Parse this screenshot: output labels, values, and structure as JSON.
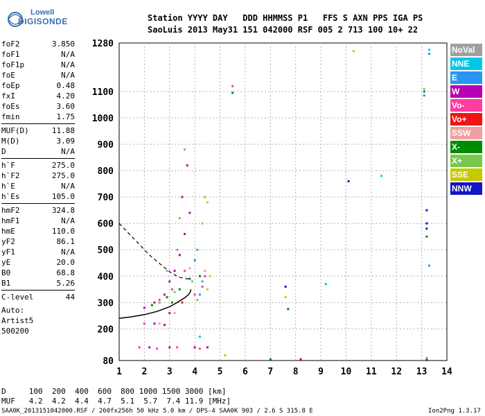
{
  "logo": {
    "line1": "Lowell",
    "line2": "DIGISONDE"
  },
  "header": {
    "row1": "Station YYYY DAY   DDD HHMMSS P1   FFS S AXN PPS IGA PS",
    "row2": "SaoLuis 2013 May31 151 042000 RSF 005 2 713 100 10+ 22"
  },
  "params": [
    {
      "group": [
        {
          "key": "foF2",
          "value": "3.850"
        },
        {
          "key": "foF1",
          "value": "N/A"
        },
        {
          "key": "foF1p",
          "value": "N/A"
        },
        {
          "key": "foE",
          "value": "N/A"
        },
        {
          "key": "foEp",
          "value": "0.48"
        },
        {
          "key": "fxI",
          "value": "4.20"
        },
        {
          "key": "foEs",
          "value": "3.60"
        },
        {
          "key": "fmin",
          "value": "1.75"
        }
      ]
    },
    {
      "group": [
        {
          "key": "MUF(D)",
          "value": "11.88"
        },
        {
          "key": "M(D)",
          "value": "3.09"
        },
        {
          "key": "D",
          "value": "N/A"
        }
      ]
    },
    {
      "group": [
        {
          "key": "h`F",
          "value": "275.0"
        },
        {
          "key": "h`F2",
          "value": "275.0"
        },
        {
          "key": "h`E",
          "value": "N/A"
        },
        {
          "key": "h`Es",
          "value": "105.0"
        }
      ]
    },
    {
      "group": [
        {
          "key": "hmF2",
          "value": "324.8"
        },
        {
          "key": "hmF1",
          "value": "N/A"
        },
        {
          "key": "hmE",
          "value": "110.0"
        },
        {
          "key": "yF2",
          "value": "86.1"
        },
        {
          "key": "yF1",
          "value": "N/A"
        },
        {
          "key": "yE",
          "value": "20.0"
        },
        {
          "key": "B0",
          "value": "68.8"
        },
        {
          "key": "B1",
          "value": "5.26"
        }
      ]
    },
    {
      "group": [
        {
          "key": "C-level",
          "value": "44"
        }
      ]
    }
  ],
  "auto": {
    "line1": "Auto:",
    "line2": "Artist5",
    "line3": "500200"
  },
  "footer": {
    "d_row": "D     100  200  400  600  800 1000 1500 3000 [km]",
    "muf_row": "MUF   4.2  4.2  4.4  4.7  5.1  5.7  7.4 11.9 [MHz]",
    "status": "SAA0K_2013151042000.RSF / 260fx256h 50 kHz 5.0 km / DPS-4 SAA0K 903 / 2.6 S 315.8 E",
    "version": "Ion2Png 1.3.17"
  },
  "legend": [
    {
      "label": "NoVal",
      "color": "#a0a0a0"
    },
    {
      "label": "NNE",
      "color": "#00c8e6"
    },
    {
      "label": "E",
      "color": "#2896f0"
    },
    {
      "label": "W",
      "color": "#b400b4"
    },
    {
      "label": "Vo-",
      "color": "#ff3ca0"
    },
    {
      "label": "Vo+",
      "color": "#f01414"
    },
    {
      "label": "SSW",
      "color": "#f0a0a0"
    },
    {
      "label": "X-",
      "color": "#008c00"
    },
    {
      "label": "X+",
      "color": "#78c850"
    },
    {
      "label": "SSE",
      "color": "#c8c800"
    },
    {
      "label": "NNW",
      "color": "#1414c8"
    }
  ],
  "chart_data": {
    "type": "scatter",
    "title": "",
    "xlabel": "",
    "ylabel": "",
    "xlim": [
      1,
      14
    ],
    "ylim": [
      80,
      1280
    ],
    "x_ticks": [
      "1",
      "2",
      "3",
      "4",
      "5",
      "6",
      "7",
      "8",
      "9",
      "10",
      "11",
      "12",
      "13",
      "14"
    ],
    "y_ticks": [
      "80",
      "200",
      "300",
      "400",
      "500",
      "600",
      "700",
      "800",
      "900",
      "1000",
      "1100",
      "1280"
    ],
    "y_tick_values": [
      80,
      200,
      300,
      400,
      500,
      600,
      700,
      800,
      900,
      1000,
      1100,
      1280
    ],
    "grid": true,
    "series": [
      {
        "name": "W",
        "color": "#b400b4",
        "points": [
          [
            2.0,
            280
          ],
          [
            2.4,
            300
          ],
          [
            2.8,
            330
          ],
          [
            3.0,
            380
          ],
          [
            3.2,
            420
          ],
          [
            3.4,
            480
          ],
          [
            3.6,
            560
          ],
          [
            3.8,
            640
          ],
          [
            3.5,
            700
          ],
          [
            3.7,
            820
          ],
          [
            2.2,
            130
          ],
          [
            3.0,
            130
          ],
          [
            4.0,
            130
          ],
          [
            4.5,
            130
          ],
          [
            2.8,
            215
          ],
          [
            2.4,
            220
          ]
        ]
      },
      {
        "name": "Vo-",
        "color": "#ff3ca0",
        "points": [
          [
            1.8,
            130
          ],
          [
            2.5,
            125
          ],
          [
            3.3,
            130
          ],
          [
            4.2,
            125
          ],
          [
            2.6,
            310
          ],
          [
            3.1,
            350
          ],
          [
            3.6,
            420
          ],
          [
            4.0,
            330
          ],
          [
            4.3,
            360
          ],
          [
            4.4,
            400
          ],
          [
            2.0,
            220
          ],
          [
            5.5,
            1120
          ]
        ]
      },
      {
        "name": "X-",
        "color": "#008c00",
        "points": [
          [
            2.3,
            290
          ],
          [
            2.9,
            320
          ],
          [
            3.4,
            350
          ],
          [
            3.8,
            390
          ],
          [
            4.2,
            400
          ],
          [
            3.1,
            300
          ],
          [
            5.5,
            1095
          ],
          [
            13.1,
            1100
          ],
          [
            13.2,
            550
          ],
          [
            7.7,
            275
          ],
          [
            7.0,
            85
          ]
        ]
      },
      {
        "name": "X+",
        "color": "#78c850",
        "points": [
          [
            2.6,
            300
          ],
          [
            3.2,
            340
          ],
          [
            3.9,
            380
          ],
          [
            4.1,
            310
          ],
          [
            13.1,
            1110
          ],
          [
            13.2,
            90
          ]
        ]
      },
      {
        "name": "SSE",
        "color": "#c8c800",
        "points": [
          [
            4.4,
            700
          ],
          [
            4.5,
            680
          ],
          [
            4.3,
            600
          ],
          [
            4.6,
            400
          ],
          [
            4.5,
            350
          ],
          [
            10.3,
            1250
          ],
          [
            5.2,
            100
          ],
          [
            7.6,
            320
          ]
        ]
      },
      {
        "name": "NNE",
        "color": "#00c8e6",
        "points": [
          [
            4.1,
            500
          ],
          [
            4.3,
            380
          ],
          [
            9.2,
            370
          ],
          [
            13.3,
            1255
          ],
          [
            11.4,
            780
          ],
          [
            4.2,
            170
          ]
        ]
      },
      {
        "name": "E",
        "color": "#2896f0",
        "points": [
          [
            4.0,
            460
          ],
          [
            4.2,
            330
          ],
          [
            13.3,
            1240
          ],
          [
            13.3,
            440
          ],
          [
            13.1,
            1085
          ]
        ]
      },
      {
        "name": "NNW",
        "color": "#1414c8",
        "points": [
          [
            10.1,
            760
          ],
          [
            7.6,
            360
          ],
          [
            13.2,
            650
          ],
          [
            13.2,
            600
          ],
          [
            13.2,
            580
          ],
          [
            13.2,
            82
          ]
        ]
      },
      {
        "name": "Vo+",
        "color": "#f01414",
        "points": [
          [
            3.0,
            260
          ],
          [
            3.5,
            300
          ],
          [
            8.2,
            85
          ]
        ]
      },
      {
        "name": "SSW",
        "color": "#f0a0a0",
        "points": [
          [
            2.6,
            220
          ],
          [
            3.2,
            260
          ],
          [
            3.8,
            430
          ],
          [
            4.4,
            420
          ]
        ]
      },
      {
        "name": "NoVal",
        "color": "#a0a0a0",
        "points": [
          [
            3.3,
            500
          ],
          [
            3.4,
            620
          ],
          [
            3.6,
            880
          ],
          [
            2.9,
            420
          ]
        ]
      }
    ],
    "profile_curve": [
      [
        1.0,
        240
      ],
      [
        1.5,
        246
      ],
      [
        2.0,
        254
      ],
      [
        2.5,
        266
      ],
      [
        3.0,
        284
      ],
      [
        3.3,
        300
      ],
      [
        3.6,
        318
      ],
      [
        3.75,
        330
      ],
      [
        3.82,
        340
      ],
      [
        3.85,
        350
      ]
    ],
    "extrapolated_curve": [
      [
        1.0,
        600
      ],
      [
        1.6,
        540
      ],
      [
        2.2,
        480
      ],
      [
        2.7,
        440
      ],
      [
        3.1,
        410
      ],
      [
        3.4,
        395
      ],
      [
        3.7,
        390
      ],
      [
        3.85,
        390
      ]
    ]
  }
}
